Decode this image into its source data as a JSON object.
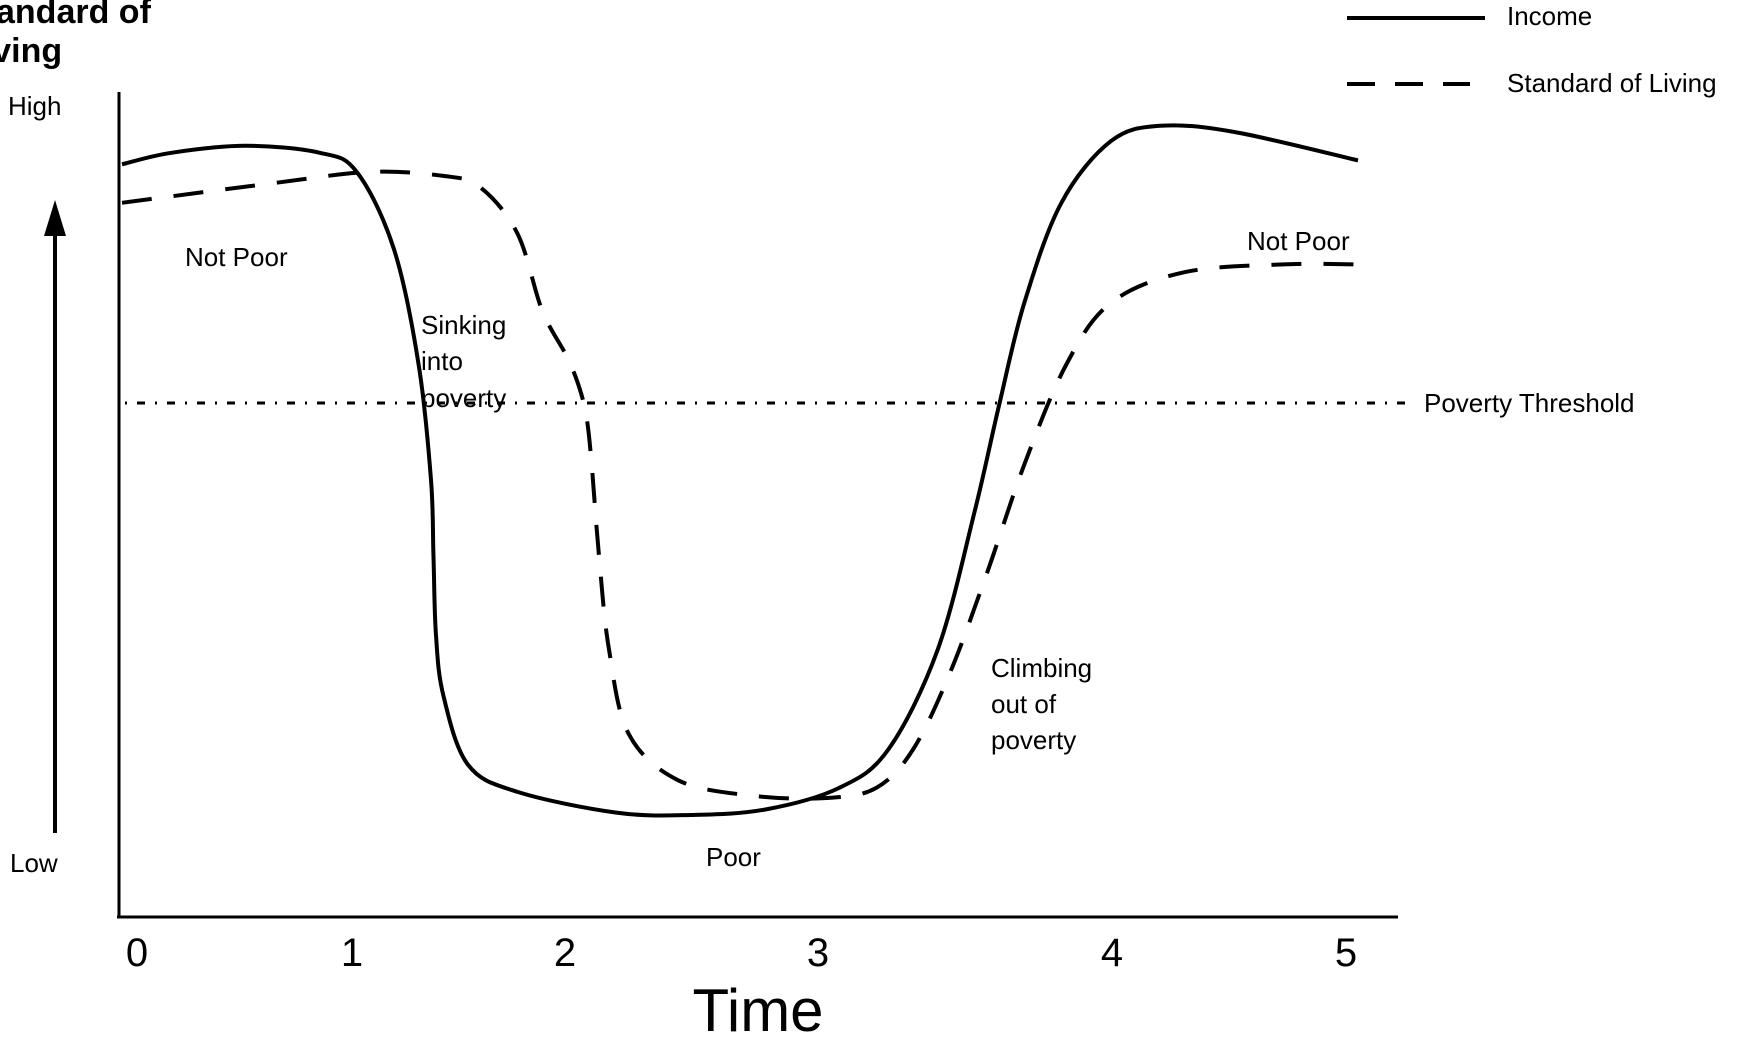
{
  "chart_data": {
    "type": "line",
    "title": "",
    "y_title_lines": [
      "Standard of",
      "Living"
    ],
    "xlabel": "Time",
    "ylabel_high": "High",
    "ylabel_low": "Low",
    "x_ticks": [
      "0",
      "1",
      "2",
      "3",
      "4",
      "5"
    ],
    "xlim": [
      0,
      5
    ],
    "ylim": [
      0,
      100
    ],
    "grid": false,
    "legend_position": "top-right",
    "threshold": {
      "label": "Poverty Threshold",
      "value": 60
    },
    "series": [
      {
        "name": "Income",
        "style": "solid",
        "x": [
          0,
          0.2,
          0.5,
          0.8,
          0.95,
          1.1,
          1.2,
          1.25,
          1.26,
          1.27,
          1.3,
          1.4,
          1.6,
          2.0,
          2.3,
          2.6,
          2.9,
          3.1,
          3.3,
          3.45,
          3.55,
          3.65,
          3.8,
          4.0,
          4.2,
          4.5,
          5.0
        ],
        "values": [
          91,
          92.5,
          93.4,
          92.5,
          90,
          80,
          65,
          50,
          40,
          30,
          22,
          13,
          9.5,
          6.8,
          6.5,
          7.2,
          10,
          15,
          28,
          46,
          60,
          73,
          86,
          94,
          96,
          95.2,
          91.5
        ]
      },
      {
        "name": "Standard of Living",
        "style": "dashed",
        "x": [
          0,
          0.6,
          1.0,
          1.3,
          1.45,
          1.6,
          1.7,
          1.8,
          1.85,
          1.88,
          1.9,
          1.93,
          1.97,
          2.05,
          2.25,
          2.55,
          2.85,
          3.05,
          3.2,
          3.35,
          3.5,
          3.65,
          3.82,
          4.0,
          4.3,
          4.7,
          5.0
        ],
        "values": [
          86,
          88.5,
          90,
          89.5,
          88,
          82,
          72,
          66,
          62,
          58,
          52,
          40,
          28,
          17,
          11,
          9,
          8.7,
          10,
          15,
          25,
          38,
          52,
          65,
          73,
          77,
          78,
          78
        ]
      }
    ],
    "annotations": [
      "Not Poor",
      "Sinking into poverty",
      "Poor",
      "Climbing out of poverty",
      "Not Poor"
    ]
  },
  "annotation_lines": {
    "not_poor_left": [
      "Not Poor"
    ],
    "sinking": [
      "Sinking",
      "into",
      "poverty"
    ],
    "poor": [
      "Poor"
    ],
    "climbing": [
      "Climbing",
      "out of",
      "poverty"
    ],
    "not_poor_right": [
      "Not Poor"
    ]
  },
  "legend": [
    {
      "label": "Income",
      "style": "solid"
    },
    {
      "label": "Standard of Living",
      "style": "dashed"
    }
  ]
}
